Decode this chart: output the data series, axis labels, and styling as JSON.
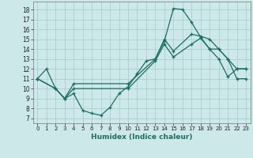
{
  "title": "",
  "xlabel": "Humidex (Indice chaleur)",
  "ylabel": "",
  "xlim": [
    -0.5,
    23.5
  ],
  "ylim": [
    6.5,
    18.8
  ],
  "yticks": [
    7,
    8,
    9,
    10,
    11,
    12,
    13,
    14,
    15,
    16,
    17,
    18
  ],
  "xticks": [
    0,
    1,
    2,
    3,
    4,
    5,
    6,
    7,
    8,
    9,
    10,
    11,
    12,
    13,
    14,
    15,
    16,
    17,
    18,
    19,
    20,
    21,
    22,
    23
  ],
  "bg_color": "#cce8e8",
  "line_color": "#1a6e62",
  "grid_color": "#aacece",
  "line1_x": [
    0,
    1,
    2,
    3,
    4,
    5,
    6,
    7,
    8,
    9,
    10,
    11,
    12,
    13,
    14,
    15,
    16,
    17,
    18,
    19,
    20,
    21,
    22,
    23
  ],
  "line1_y": [
    11,
    12,
    10,
    9,
    9.5,
    7.8,
    7.5,
    7.3,
    8.1,
    9.5,
    10.2,
    11.5,
    12.8,
    13.0,
    14.8,
    18.1,
    18.0,
    16.7,
    15.2,
    14.0,
    13.0,
    11.2,
    12.0,
    12.0
  ],
  "line2_x": [
    0,
    2,
    3,
    4,
    10,
    13,
    14,
    15,
    17,
    18,
    19,
    20,
    21,
    22,
    23
  ],
  "line2_y": [
    11,
    10,
    9,
    10,
    10,
    12.8,
    14.5,
    13.2,
    14.5,
    15.1,
    14.0,
    14.0,
    13.0,
    12.0,
    12.0
  ],
  "line3_x": [
    0,
    2,
    3,
    4,
    10,
    13,
    14,
    15,
    17,
    18,
    19,
    20,
    21,
    22,
    23
  ],
  "line3_y": [
    11,
    10,
    9,
    10.5,
    10.5,
    13.0,
    15.0,
    13.8,
    15.5,
    15.3,
    15.0,
    14.0,
    13.0,
    11.0,
    11.0
  ]
}
